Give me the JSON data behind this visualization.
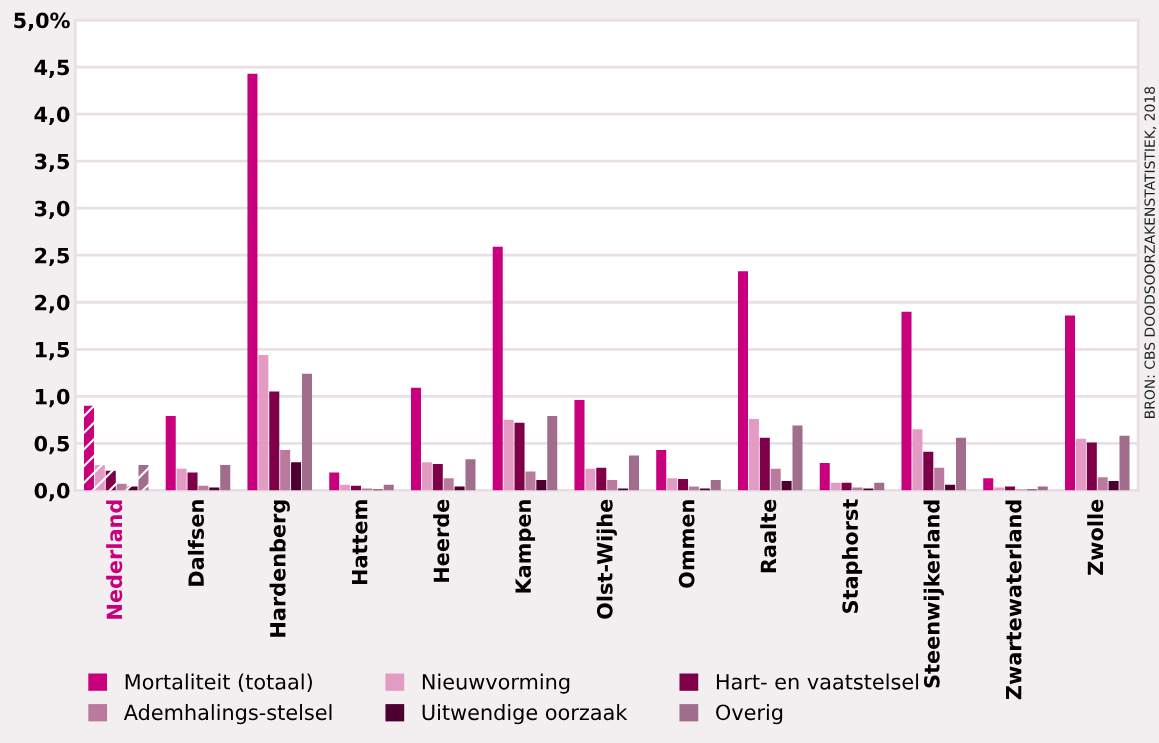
{
  "chart_data": {
    "type": "bar",
    "categories": [
      "Nederland",
      "Dalfsen",
      "Hardenberg",
      "Hattem",
      "Heerde",
      "Kampen",
      "Olst-Wijhe",
      "Ommen",
      "Raalte",
      "Staphorst",
      "Steenwijkerland",
      "Zwartewaterland",
      "Zwolle"
    ],
    "series": [
      {
        "name": "Mortaliteit (totaal)",
        "color": "#c8007d",
        "values": [
          0.9,
          0.79,
          4.43,
          0.19,
          1.09,
          2.59,
          0.96,
          0.43,
          2.33,
          0.29,
          1.9,
          0.13,
          1.86
        ]
      },
      {
        "name": "Nieuwvorming",
        "color": "#e39bc3",
        "values": [
          0.27,
          0.23,
          1.44,
          0.06,
          0.3,
          0.75,
          0.23,
          0.13,
          0.76,
          0.08,
          0.65,
          0.03,
          0.55
        ]
      },
      {
        "name": "Hart- en vaatstelsel",
        "color": "#7d0048",
        "values": [
          0.21,
          0.19,
          1.05,
          0.05,
          0.28,
          0.72,
          0.24,
          0.12,
          0.56,
          0.08,
          0.41,
          0.04,
          0.51
        ]
      },
      {
        "name": "Ademhalings-stelsel",
        "color": "#b97a9e",
        "values": [
          0.07,
          0.05,
          0.43,
          0.02,
          0.13,
          0.2,
          0.11,
          0.04,
          0.23,
          0.03,
          0.24,
          0.01,
          0.14
        ]
      },
      {
        "name": "Uitwendige oorzaak",
        "color": "#4d0030",
        "values": [
          0.04,
          0.03,
          0.3,
          0.01,
          0.04,
          0.11,
          0.02,
          0.02,
          0.1,
          0.02,
          0.06,
          0.01,
          0.1
        ]
      },
      {
        "name": "Overig",
        "color": "#a06e8c",
        "values": [
          0.27,
          0.27,
          1.24,
          0.06,
          0.33,
          0.79,
          0.37,
          0.11,
          0.69,
          0.08,
          0.56,
          0.04,
          0.58
        ]
      }
    ],
    "ylim": [
      0,
      5.0
    ],
    "yticks": [
      {
        "value": 0,
        "label": "0,0"
      },
      {
        "value": 0.5,
        "label": "0,5"
      },
      {
        "value": 1.0,
        "label": "1,0"
      },
      {
        "value": 1.5,
        "label": "1,5"
      },
      {
        "value": 2.0,
        "label": "2,0"
      },
      {
        "value": 2.5,
        "label": "2,5"
      },
      {
        "value": 3.0,
        "label": "3,0"
      },
      {
        "value": 3.5,
        "label": "3,5"
      },
      {
        "value": 4.0,
        "label": "4,0"
      },
      {
        "value": 4.5,
        "label": "4,5"
      },
      {
        "value": 5.0,
        "label": "5,0%"
      }
    ],
    "grid": "y",
    "legend": "bottom",
    "annotations": [
      "BRON: CBS DOODSOORZAKENSTATISTIEK, 2018"
    ]
  }
}
